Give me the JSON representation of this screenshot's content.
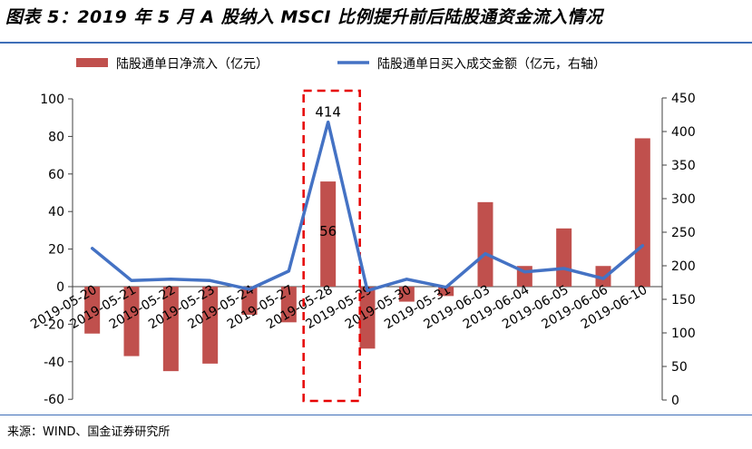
{
  "title": "图表 5：2019 年 5 月 A 股纳入 MSCI 比例提升前后陆股通资金流入情况",
  "source": "来源：WIND、国金证券研究所",
  "colors": {
    "bar": "#c0504d",
    "line": "#4472c4",
    "highlight": "#e60000",
    "rule": "#3f6fb8"
  },
  "chart_data": {
    "type": "bar+line",
    "categories": [
      "2019-05-20",
      "2019-05-21",
      "2019-05-22",
      "2019-05-23",
      "2019-05-24",
      "2019-05-27",
      "2019-05-28",
      "2019-05-29",
      "2019-05-30",
      "2019-05-31",
      "2019-06-03",
      "2019-06-04",
      "2019-06-05",
      "2019-06-06",
      "2019-06-10"
    ],
    "series": [
      {
        "name": "陆股通单日净流入（亿元）",
        "type": "bar",
        "axis": "left",
        "values": [
          -25,
          -37,
          -45,
          -41,
          -15,
          -19,
          56,
          -33,
          -8,
          -5,
          45,
          11,
          31,
          11,
          79
        ]
      },
      {
        "name": "陆股通单日买入成交金额（亿元，右轴）",
        "type": "line",
        "axis": "right",
        "values": [
          226,
          178,
          180,
          178,
          165,
          192,
          414,
          163,
          180,
          168,
          218,
          191,
          196,
          181,
          230
        ]
      }
    ],
    "data_labels": [
      {
        "category": "2019-05-28",
        "series": "陆股通单日买入成交金额（亿元，右轴）",
        "text": "414"
      },
      {
        "category": "2019-05-28",
        "series": "陆股通单日净流入（亿元）",
        "text": "56"
      }
    ],
    "ylim_left": [
      -60,
      100
    ],
    "yticks_left": [
      -60,
      -40,
      -20,
      0,
      20,
      40,
      60,
      80,
      100
    ],
    "ylim_right": [
      0,
      450
    ],
    "yticks_right": [
      0,
      50,
      100,
      150,
      200,
      250,
      300,
      350,
      400,
      450
    ],
    "highlight_category": "2019-05-28",
    "legend_position": "top",
    "grid": false
  }
}
